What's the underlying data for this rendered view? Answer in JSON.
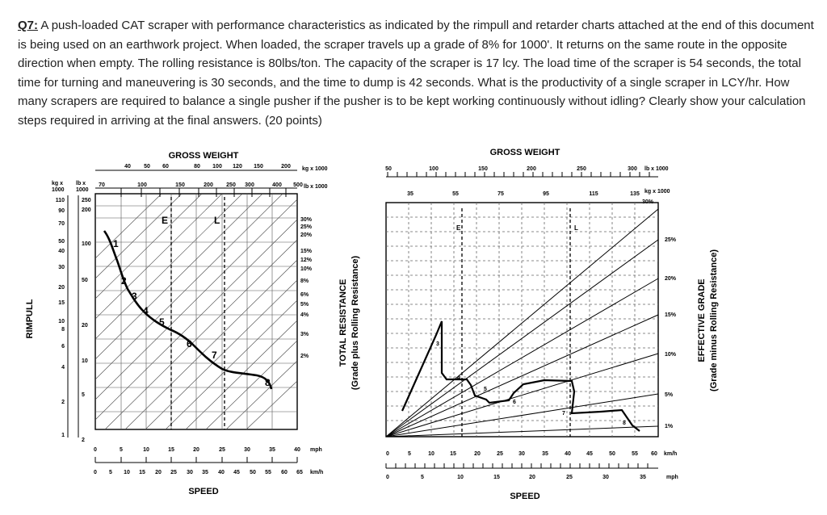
{
  "question": {
    "label": "Q7:",
    "text": " A push-loaded CAT scraper with performance characteristics as indicated by the rimpull and retarder charts attached at the end of this document is being used on an earthwork project. When loaded, the scraper travels up a grade of 8% for 1000'. It returns on the same route in the opposite direction when empty. The rolling resistance is 80lbs/ton. The capacity of the scraper is 17 lcy. The load time of the scraper is 54 seconds, the total time for turning and maneuvering is 30 seconds, and the time to dump is 42 seconds. What is the productivity of a single scraper in LCY/hr. How many scrapers are required to balance a single pusher if the pusher is to be kept working continuously without idling? Clearly show your calculation steps required in arriving at the final answers. (20 points)"
  },
  "rimpull_chart": {
    "title": "GROSS WEIGHT",
    "top_ticks_1": [
      "40",
      "50",
      "60",
      "80",
      "100",
      "120",
      "150",
      "200"
    ],
    "top_unit_1": "kg x 1000",
    "top_ticks_2": [
      "70",
      "100",
      "150",
      "200",
      "250",
      "300",
      "400",
      "500"
    ],
    "top_unit_2": "lb x 1000",
    "left_head_kg": [
      "kg x",
      "1000"
    ],
    "left_head_lb": [
      "lb x",
      "1000"
    ],
    "left_ticks_kg": [
      "110",
      "90",
      "70",
      "50",
      "40",
      "30",
      "20",
      "15",
      "10",
      "8",
      "6",
      "4",
      "2",
      "1"
    ],
    "left_ticks_lb": [
      "250",
      "200",
      "100",
      "50",
      "20",
      "10",
      "5",
      "2"
    ],
    "ylabel": "RIMPULL",
    "right_ticks": [
      "30%",
      "25%",
      "20%",
      "15%",
      "12%",
      "10%",
      "8%",
      "6%",
      "5%",
      "4%",
      "3%",
      "2%"
    ],
    "right_label_1": "TOTAL RESISTANCE",
    "right_label_2": "(Grade plus Rolling Resistance)",
    "bottom_ticks_mph": [
      "0",
      "5",
      "10",
      "15",
      "20",
      "25",
      "30",
      "35",
      "40"
    ],
    "bottom_unit_mph": "mph",
    "bottom_ticks_kmh": [
      "0",
      "5",
      "10",
      "15",
      "20",
      "25",
      "30",
      "35",
      "40",
      "45",
      "50",
      "55",
      "60",
      "65"
    ],
    "bottom_unit_kmh": "km/h",
    "xlabel": "SPEED",
    "empty_marker": "E",
    "loaded_marker": "L",
    "gear_labels": [
      "1",
      "2",
      "3",
      "4",
      "5",
      "6",
      "7",
      "8"
    ]
  },
  "retarder_chart": {
    "title": "GROSS WEIGHT",
    "top_ticks_lb": [
      "50",
      "100",
      "150",
      "200",
      "250",
      "300"
    ],
    "top_unit_lb": "lb x 1000",
    "top_ticks_kg": [
      "35",
      "55",
      "75",
      "95",
      "115",
      "135"
    ],
    "top_unit_kg": "kg x 1000",
    "right_ticks": [
      "30%",
      "25%",
      "20%",
      "15%",
      "10%",
      "5%",
      "1%"
    ],
    "right_label_1": "EFFECTIVE GRADE",
    "right_label_2": "(Grade minus Rolling Resistance)",
    "bottom_ticks_kmh": [
      "0",
      "5",
      "10",
      "15",
      "20",
      "25",
      "30",
      "35",
      "40",
      "45",
      "50",
      "55",
      "60"
    ],
    "bottom_unit_kmh": "km/h",
    "bottom_ticks_mph": [
      "0",
      "5",
      "10",
      "15",
      "20",
      "25",
      "30",
      "35"
    ],
    "bottom_unit_mph": "mph",
    "xlabel": "SPEED",
    "empty_marker": "E",
    "loaded_marker": "L",
    "gear_labels": [
      "3",
      "4",
      "5",
      "6",
      "7",
      "8"
    ]
  }
}
